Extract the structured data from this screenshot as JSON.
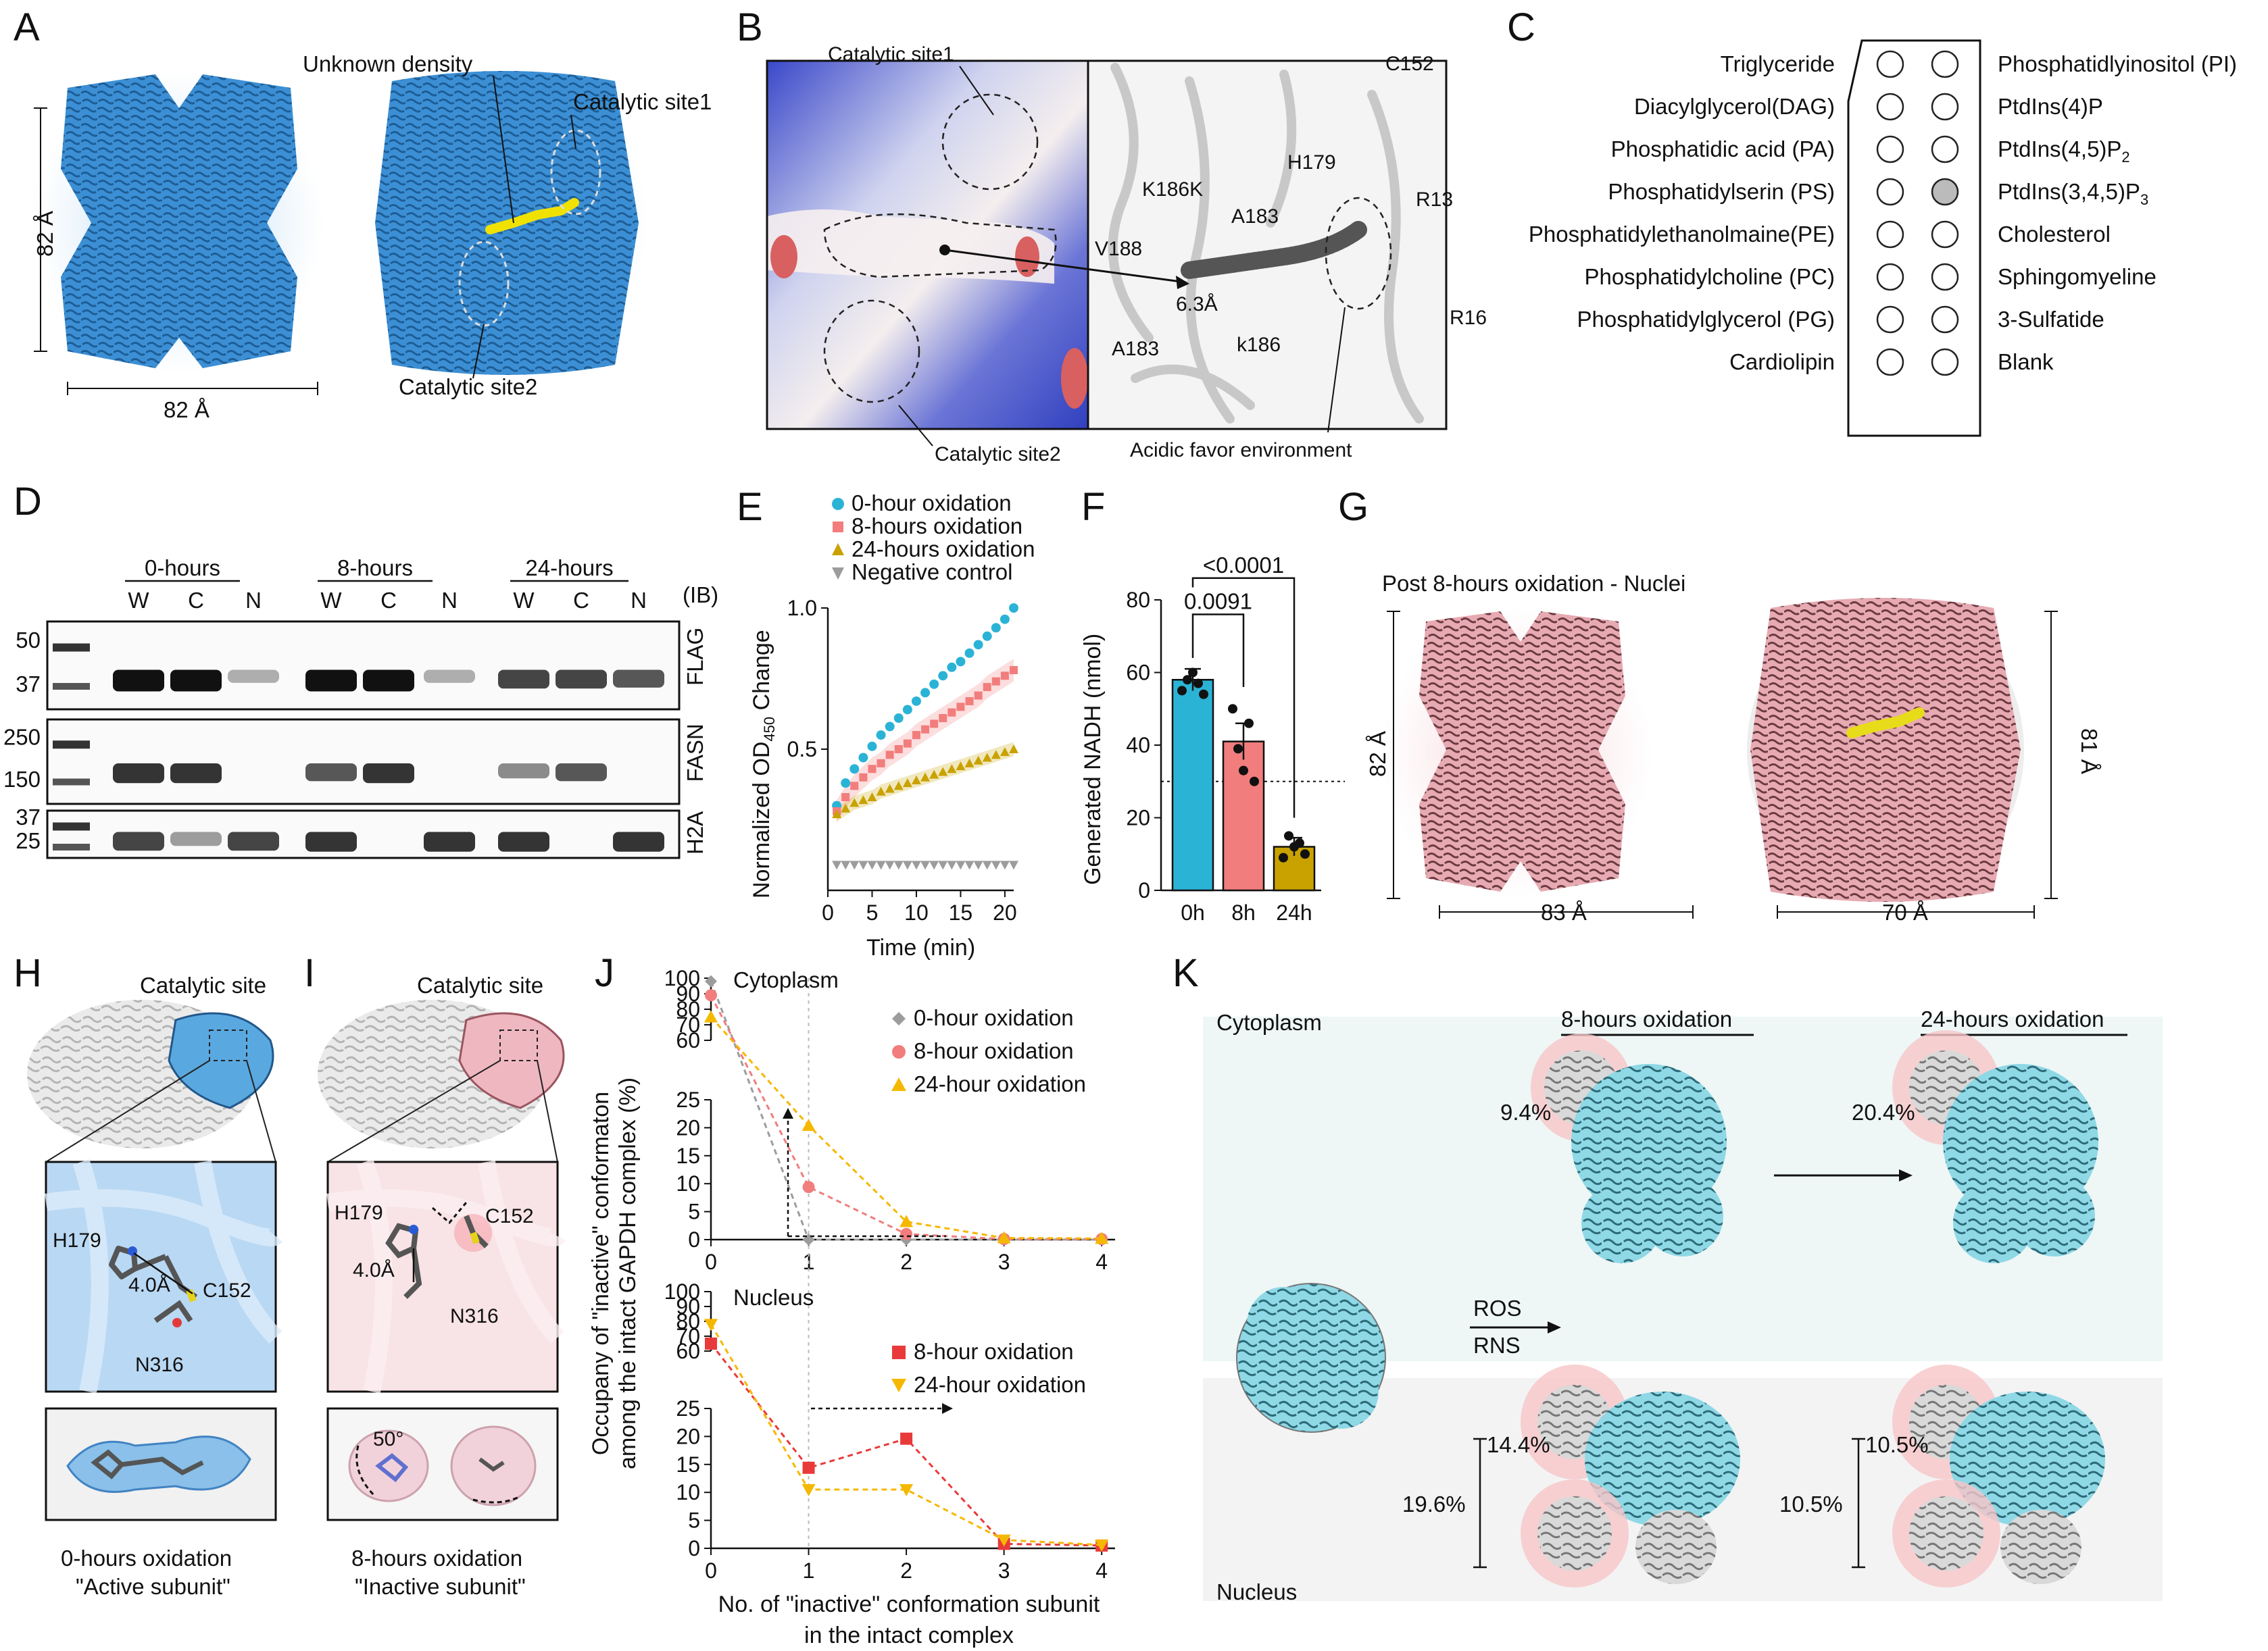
{
  "panel_letters": [
    "A",
    "B",
    "C",
    "D",
    "E",
    "F",
    "G",
    "H",
    "I",
    "J",
    "K"
  ],
  "colors": {
    "blue": "#3c8fd4",
    "pink": "#e9aab3",
    "yellow": "#e8dc1a",
    "cyan": "#2bb3d6",
    "salmon": "#f27d7d",
    "gold": "#c9a200",
    "gray": "#9c9c9c",
    "red": "#e93a3a",
    "orange": "#f5b800",
    "teal": "#7fd4e3",
    "mapPink": "#d9a3ad"
  },
  "A": {
    "label_unknown": "Unknown density",
    "label_site1": "Catalytic site1",
    "label_site2": "Catalytic site2",
    "dim_vertical": "82 Å",
    "dim_horizontal": "82 Å"
  },
  "B": {
    "site1": "Catalytic site1",
    "site2": "Catalytic site2",
    "acidic": "Acidic favor environment",
    "residues": [
      "C152",
      "H179",
      "K186K",
      "A183",
      "V188",
      "R13",
      "R16",
      "6.3Å",
      "A183",
      "k186"
    ]
  },
  "C": {
    "left_lipids": [
      "Triglyceride",
      "Diacylglycerol(DAG)",
      "Phosphatidic acid (PA)",
      "Phosphatidylserin (PS)",
      "Phosphatidylethanolmaine(PE)",
      "Phosphatidylcholine (PC)",
      "Phosphatidylglycerol (PG)",
      "Cardiolipin"
    ],
    "right_lipids": [
      "Phosphatidlyinositol (PI)",
      "PtdIns(4)P",
      "PtdIns(4,5)P",
      "PtdIns(3,4,5)P",
      "Cholesterol",
      "Sphingomyeline",
      "3-Sulfatide",
      "Blank"
    ],
    "right_subscripts": [
      "",
      "",
      "2",
      "3",
      "",
      "",
      "",
      ""
    ]
  },
  "D": {
    "groups": [
      "0-hours",
      "8-hours",
      "24-hours"
    ],
    "lanes": [
      "W",
      "C",
      "N",
      "W",
      "C",
      "N",
      "W",
      "C",
      "N"
    ],
    "ib": "(IB)",
    "blots": [
      {
        "name": "FLAG",
        "markers": [
          "50",
          "37"
        ]
      },
      {
        "name": "FASN",
        "markers": [
          "250",
          "150"
        ]
      },
      {
        "name": "H2A",
        "markers": [
          "37",
          "25"
        ]
      }
    ]
  },
  "E": {
    "legend": [
      "0-hour oxidation",
      "8-hours oxidation",
      "24-hours oxidation",
      "Negative control"
    ],
    "ylabel": "Normalized OD",
    "ylabel_sub": "450",
    "ylabel_end": " Change",
    "xlabel": "Time (min)",
    "xticks": [
      "0",
      "5",
      "10",
      "15",
      "20"
    ],
    "yticks": [
      "0.5",
      "1.0"
    ]
  },
  "F": {
    "ylabel": "Generated NADH (nmol)",
    "categories": [
      "0h",
      "8h",
      "24h"
    ],
    "yticks": [
      "0",
      "20",
      "40",
      "60",
      "80"
    ],
    "p1": "0.0091",
    "p2": "<0.0001"
  },
  "G": {
    "title": "Post 8-hours oxidation - Nuclei",
    "dim1_v": "82 Å",
    "dim1_h": "83 Å",
    "dim2_v": "81 Å",
    "dim2_h": "70 Å"
  },
  "H": {
    "title": "Catalytic site",
    "res": [
      "H179",
      "C152",
      "4.0Å",
      "N316"
    ],
    "caption1": "0-hours oxidation",
    "caption2": "\"Active subunit\""
  },
  "I": {
    "title": "Catalytic site",
    "res": [
      "H179",
      "C152",
      "4.0Å",
      "N316",
      "50°"
    ],
    "caption1": "8-hours oxidation",
    "caption2": "\"Inactive subunit\""
  },
  "J": {
    "cyto_label": "Cytoplasm",
    "nuc_label": "Nucleus",
    "ylabel1": "Occupany of \"inactive\" conformaton",
    "ylabel2": "among the intact GAPDH complex (%)",
    "xlabel1": "No. of \"inactive\" conformation subunit",
    "xlabel2": "in the intact complex",
    "xticks": [
      "0",
      "1",
      "2",
      "3",
      "4"
    ],
    "yticks_upper": [
      "60",
      "70",
      "80",
      "90",
      "100"
    ],
    "yticks_lower": [
      "0",
      "5",
      "10",
      "15",
      "20",
      "25"
    ],
    "legend_top": [
      "0-hour oxidation",
      "8-hour oxidation",
      "24-hour oxidation"
    ],
    "legend_bottom": [
      "8-hour oxidation",
      "24-hour oxidation"
    ]
  },
  "K": {
    "cytoplasm": "Cytoplasm",
    "nucleus": "Nucleus",
    "h8": "8-hours oxidation",
    "h24": "24-hours oxidation",
    "ros": "ROS",
    "rns": "RNS",
    "pct": [
      "9.4%",
      "20.4%",
      "14.4%",
      "19.6%",
      "10.5%",
      "10.5%"
    ]
  },
  "chart_data": [
    {
      "panel": "E",
      "type": "line",
      "xlabel": "Time (min)",
      "ylabel": "Normalized OD450 Change",
      "xlim": [
        0,
        21
      ],
      "ylim": [
        0,
        1.0
      ],
      "series": [
        {
          "name": "0-hour oxidation",
          "x": [
            1,
            2,
            3,
            4,
            5,
            6,
            7,
            8,
            9,
            10,
            11,
            12,
            13,
            14,
            15,
            16,
            17,
            18,
            19,
            20,
            21
          ],
          "values": [
            0.3,
            0.38,
            0.43,
            0.47,
            0.51,
            0.55,
            0.58,
            0.61,
            0.64,
            0.67,
            0.7,
            0.73,
            0.76,
            0.79,
            0.81,
            0.84,
            0.87,
            0.9,
            0.93,
            0.96,
            1.0
          ]
        },
        {
          "name": "8-hours oxidation",
          "x": [
            1,
            2,
            3,
            4,
            5,
            6,
            7,
            8,
            9,
            10,
            11,
            12,
            13,
            14,
            15,
            16,
            17,
            18,
            19,
            20,
            21
          ],
          "values": [
            0.28,
            0.33,
            0.37,
            0.4,
            0.43,
            0.45,
            0.48,
            0.5,
            0.52,
            0.55,
            0.57,
            0.59,
            0.61,
            0.63,
            0.65,
            0.67,
            0.69,
            0.72,
            0.74,
            0.76,
            0.78
          ]
        },
        {
          "name": "24-hours oxidation",
          "x": [
            1,
            2,
            3,
            4,
            5,
            6,
            7,
            8,
            9,
            10,
            11,
            12,
            13,
            14,
            15,
            16,
            17,
            18,
            19,
            20,
            21
          ],
          "values": [
            0.27,
            0.29,
            0.31,
            0.32,
            0.33,
            0.35,
            0.36,
            0.37,
            0.38,
            0.39,
            0.4,
            0.41,
            0.42,
            0.43,
            0.44,
            0.45,
            0.46,
            0.47,
            0.48,
            0.49,
            0.5
          ]
        },
        {
          "name": "Negative control",
          "x": [
            1,
            2,
            3,
            4,
            5,
            6,
            7,
            8,
            9,
            10,
            11,
            12,
            13,
            14,
            15,
            16,
            17,
            18,
            19,
            20,
            21
          ],
          "values": [
            0.09,
            0.09,
            0.09,
            0.09,
            0.09,
            0.09,
            0.09,
            0.09,
            0.09,
            0.09,
            0.09,
            0.09,
            0.09,
            0.09,
            0.09,
            0.09,
            0.09,
            0.09,
            0.09,
            0.09,
            0.09
          ]
        }
      ]
    },
    {
      "panel": "F",
      "type": "bar",
      "categories": [
        "0h",
        "8h",
        "24h"
      ],
      "values": [
        58,
        41,
        12
      ],
      "errors": [
        3,
        5,
        2.5
      ],
      "ylim": [
        0,
        80
      ],
      "points": [
        [
          55,
          58,
          60,
          57,
          54
        ],
        [
          50,
          39,
          33,
          46,
          30
        ],
        [
          9,
          15,
          12,
          13,
          10
        ]
      ],
      "threshold": 30,
      "ylabel": "Generated NADH (nmol)"
    },
    {
      "panel": "J-cytoplasm",
      "type": "line",
      "x": [
        0,
        1,
        2,
        3,
        4
      ],
      "ylabel": "Occupany of \"inactive\" conformaton among the intact GAPDH complex (%)",
      "series": [
        {
          "name": "0-hour oxidation",
          "values": [
            98,
            0,
            0,
            0,
            0
          ]
        },
        {
          "name": "8-hour oxidation",
          "values": [
            89,
            9.4,
            1,
            0.1,
            0.1
          ]
        },
        {
          "name": "24-hour oxidation",
          "values": [
            75,
            20.4,
            3.2,
            0.3,
            0.2
          ]
        }
      ]
    },
    {
      "panel": "J-nucleus",
      "type": "line",
      "x": [
        0,
        1,
        2,
        3,
        4
      ],
      "series": [
        {
          "name": "8-hour oxidation",
          "values": [
            65,
            14.4,
            19.6,
            0.8,
            0.5
          ]
        },
        {
          "name": "24-hour oxidation",
          "values": [
            78,
            10.5,
            10.5,
            1.5,
            0.6
          ]
        }
      ]
    }
  ]
}
